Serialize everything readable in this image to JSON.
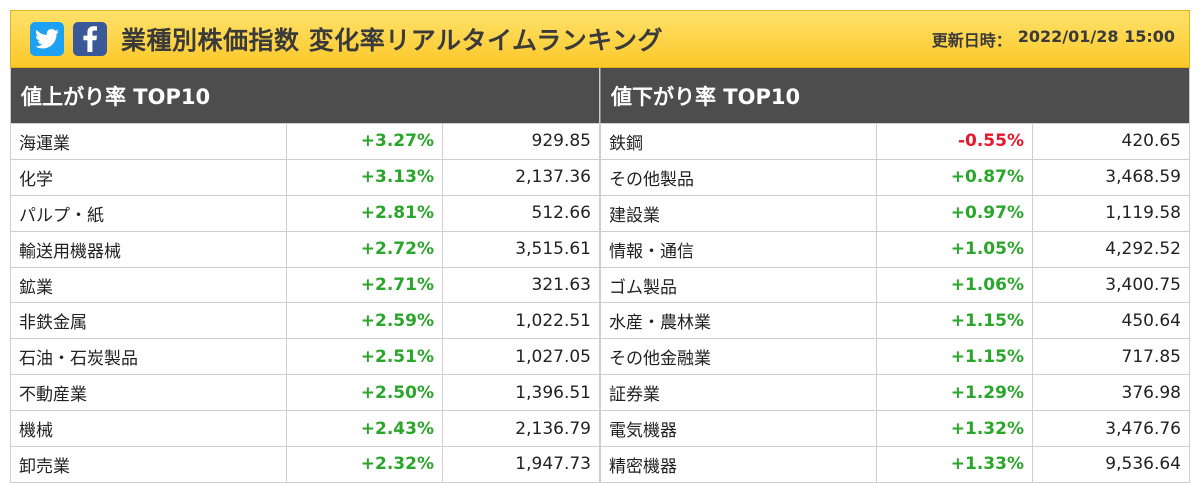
{
  "header": {
    "title": "業種別株価指数 変化率リアルタイムランキング",
    "updated_label": "更新日時：",
    "updated_value": "2022/01/28 15:00",
    "icons": [
      "twitter-icon",
      "facebook-icon"
    ],
    "colors": {
      "twitter": "#1da1f2",
      "facebook": "#3b5998",
      "positive": "#2aa62a",
      "negative": "#e8162c"
    }
  },
  "gainers": {
    "title": "値上がり率 TOP10",
    "rows": [
      {
        "name": "海運業",
        "pct": "+3.27%",
        "price": "929.85"
      },
      {
        "name": "化学",
        "pct": "+3.13%",
        "price": "2,137.36"
      },
      {
        "name": "パルプ・紙",
        "pct": "+2.81%",
        "price": "512.66"
      },
      {
        "name": "輸送用機器械",
        "pct": "+2.72%",
        "price": "3,515.61"
      },
      {
        "name": "鉱業",
        "pct": "+2.71%",
        "price": "321.63"
      },
      {
        "name": "非鉄金属",
        "pct": "+2.59%",
        "price": "1,022.51"
      },
      {
        "name": "石油・石炭製品",
        "pct": "+2.51%",
        "price": "1,027.05"
      },
      {
        "name": "不動産業",
        "pct": "+2.50%",
        "price": "1,396.51"
      },
      {
        "name": "機械",
        "pct": "+2.43%",
        "price": "2,136.79"
      },
      {
        "name": "卸売業",
        "pct": "+2.32%",
        "price": "1,947.73"
      }
    ]
  },
  "losers": {
    "title": "値下がり率 TOP10",
    "rows": [
      {
        "name": "鉄鋼",
        "pct": "-0.55%",
        "price": "420.65"
      },
      {
        "name": "その他製品",
        "pct": "+0.87%",
        "price": "3,468.59"
      },
      {
        "name": "建設業",
        "pct": "+0.97%",
        "price": "1,119.58"
      },
      {
        "name": "情報・通信",
        "pct": "+1.05%",
        "price": "4,292.52"
      },
      {
        "name": "ゴム製品",
        "pct": "+1.06%",
        "price": "3,400.75"
      },
      {
        "name": "水産・農林業",
        "pct": "+1.15%",
        "price": "450.64"
      },
      {
        "name": "その他金融業",
        "pct": "+1.15%",
        "price": "717.85"
      },
      {
        "name": "証券業",
        "pct": "+1.29%",
        "price": "376.98"
      },
      {
        "name": "電気機器",
        "pct": "+1.32%",
        "price": "3,476.76"
      },
      {
        "name": "精密機器",
        "pct": "+1.33%",
        "price": "9,536.64"
      }
    ]
  }
}
